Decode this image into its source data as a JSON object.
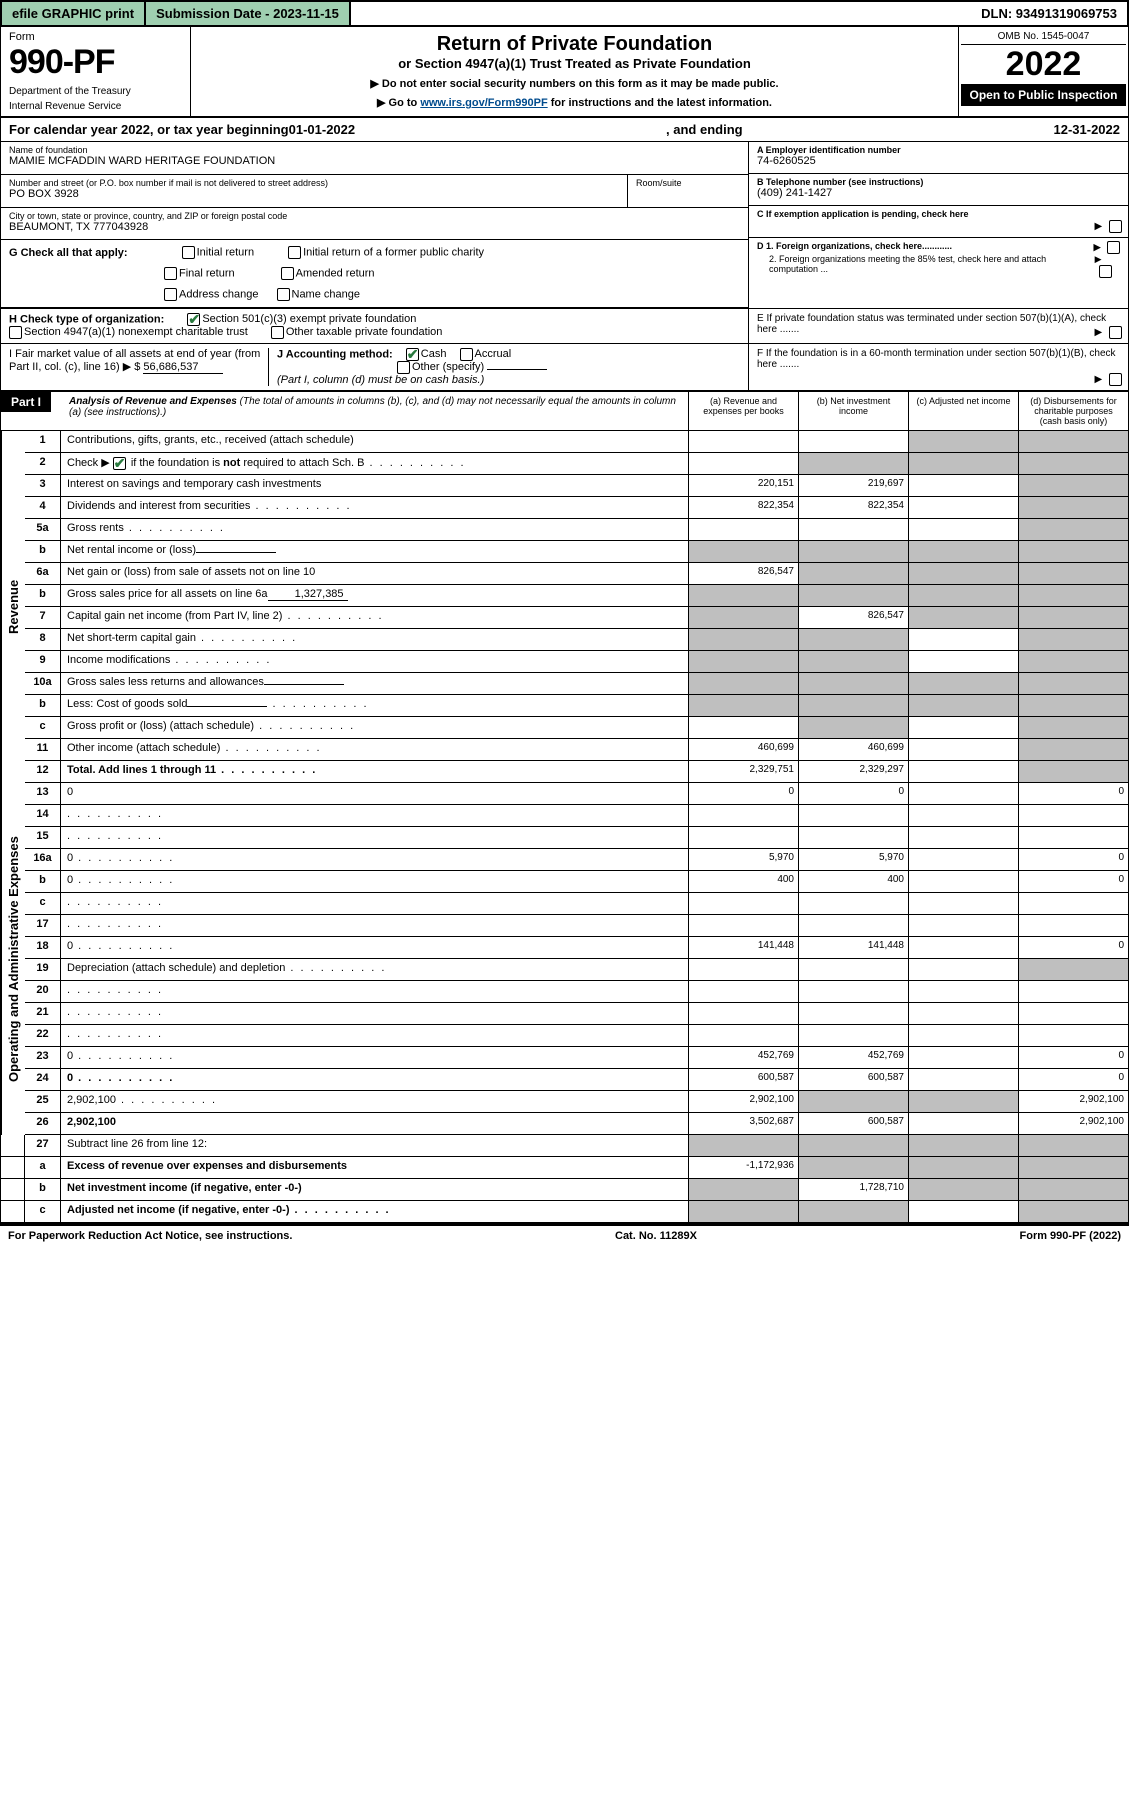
{
  "topbar": {
    "efile": "efile GRAPHIC print",
    "submission": "Submission Date - 2023-11-15",
    "dln": "DLN: 93491319069753"
  },
  "header": {
    "form_word": "Form",
    "form_num": "990-PF",
    "dept": "Department of the Treasury",
    "irs": "Internal Revenue Service",
    "title": "Return of Private Foundation",
    "subtitle": "or Section 4947(a)(1) Trust Treated as Private Foundation",
    "instr1": "▶ Do not enter social security numbers on this form as it may be made public.",
    "instr2_pre": "▶ Go to ",
    "instr2_link": "www.irs.gov/Form990PF",
    "instr2_post": " for instructions and the latest information.",
    "omb": "OMB No. 1545-0047",
    "year": "2022",
    "open": "Open to Public Inspection"
  },
  "calyear": {
    "pre": "For calendar year 2022, or tax year beginning ",
    "begin": "01-01-2022",
    "mid": ", and ending ",
    "end": "12-31-2022"
  },
  "info": {
    "name_label": "Name of foundation",
    "name": "MAMIE MCFADDIN WARD HERITAGE FOUNDATION",
    "addr_label": "Number and street (or P.O. box number if mail is not delivered to street address)",
    "addr": "PO BOX 3928",
    "room_label": "Room/suite",
    "city_label": "City or town, state or province, country, and ZIP or foreign postal code",
    "city": "BEAUMONT, TX  777043928",
    "a_label": "A Employer identification number",
    "a_val": "74-6260525",
    "b_label": "B Telephone number (see instructions)",
    "b_val": "(409) 241-1427",
    "c_label": "C If exemption application is pending, check here",
    "d1": "D 1. Foreign organizations, check here............",
    "d2": "2. Foreign organizations meeting the 85% test, check here and attach computation ...",
    "e_label": "E  If private foundation status was terminated under section 507(b)(1)(A), check here .......",
    "f_label": "F  If the foundation is in a 60-month termination under section 507(b)(1)(B), check here .......",
    "g_label": "G Check all that apply:",
    "g_opts": [
      "Initial return",
      "Initial return of a former public charity",
      "Final return",
      "Amended return",
      "Address change",
      "Name change"
    ],
    "h_label": "H Check type of organization:",
    "h_opts": [
      "Section 501(c)(3) exempt private foundation",
      "Section 4947(a)(1) nonexempt charitable trust",
      "Other taxable private foundation"
    ],
    "i_label": "I Fair market value of all assets at end of year (from Part II, col. (c), line 16) ▶ $",
    "i_val": "56,686,537",
    "j_label": "J Accounting method:",
    "j_opts": [
      "Cash",
      "Accrual",
      "Other (specify)"
    ],
    "j_note": "(Part I, column (d) must be on cash basis.)"
  },
  "part1": {
    "label": "Part I",
    "title": "Analysis of Revenue and Expenses",
    "note": "(The total of amounts in columns (b), (c), and (d) may not necessarily equal the amounts in column (a) (see instructions).)",
    "cols": {
      "a": "(a) Revenue and expenses per books",
      "b": "(b) Net investment income",
      "c": "(c) Adjusted net income",
      "d": "(d) Disbursements for charitable purposes (cash basis only)"
    }
  },
  "sections": {
    "revenue": "Revenue",
    "expenses": "Operating and Administrative Expenses"
  },
  "rows": [
    {
      "n": "1",
      "d": "Contributions, gifts, grants, etc., received (attach schedule)",
      "a": "",
      "b": "",
      "c_grey": true,
      "d_grey": true
    },
    {
      "n": "2",
      "d": "Check ▶ ☑ if the foundation is not required to attach Sch. B",
      "dots": true,
      "a": "",
      "b_grey": true,
      "c_grey": true,
      "d_grey": true,
      "bold_not": true
    },
    {
      "n": "3",
      "d": "Interest on savings and temporary cash investments",
      "a": "220,151",
      "b": "219,697",
      "c": "",
      "d_grey": true
    },
    {
      "n": "4",
      "d": "Dividends and interest from securities",
      "dots": true,
      "a": "822,354",
      "b": "822,354",
      "c": "",
      "d_grey": true
    },
    {
      "n": "5a",
      "d": "Gross rents",
      "dots": true,
      "a": "",
      "b": "",
      "c": "",
      "d_grey": true
    },
    {
      "n": "b",
      "d": "Net rental income or (loss)",
      "inline": "",
      "a_grey": true,
      "b_grey": true,
      "c_grey": true,
      "d_grey": true
    },
    {
      "n": "6a",
      "d": "Net gain or (loss) from sale of assets not on line 10",
      "a": "826,547",
      "b_grey": true,
      "c_grey": true,
      "d_grey": true
    },
    {
      "n": "b",
      "d": "Gross sales price for all assets on line 6a",
      "inline": "1,327,385",
      "a_grey": true,
      "b_grey": true,
      "c_grey": true,
      "d_grey": true
    },
    {
      "n": "7",
      "d": "Capital gain net income (from Part IV, line 2)",
      "dots": true,
      "a_grey": true,
      "b": "826,547",
      "c_grey": true,
      "d_grey": true
    },
    {
      "n": "8",
      "d": "Net short-term capital gain",
      "dots": true,
      "a_grey": true,
      "b_grey": true,
      "c": "",
      "d_grey": true
    },
    {
      "n": "9",
      "d": "Income modifications",
      "dots": true,
      "a_grey": true,
      "b_grey": true,
      "c": "",
      "d_grey": true
    },
    {
      "n": "10a",
      "d": "Gross sales less returns and allowances",
      "inline": "",
      "a_grey": true,
      "b_grey": true,
      "c_grey": true,
      "d_grey": true
    },
    {
      "n": "b",
      "d": "Less: Cost of goods sold",
      "dots": true,
      "inline": "",
      "a_grey": true,
      "b_grey": true,
      "c_grey": true,
      "d_grey": true
    },
    {
      "n": "c",
      "d": "Gross profit or (loss) (attach schedule)",
      "dots": true,
      "a": "",
      "b_grey": true,
      "c": "",
      "d_grey": true
    },
    {
      "n": "11",
      "d": "Other income (attach schedule)",
      "dots": true,
      "a": "460,699",
      "b": "460,699",
      "c": "",
      "d_grey": true
    },
    {
      "n": "12",
      "d": "Total. Add lines 1 through 11",
      "dots": true,
      "bold": true,
      "a": "2,329,751",
      "b": "2,329,297",
      "c": "",
      "d_grey": true
    }
  ],
  "exp_rows": [
    {
      "n": "13",
      "d": "0",
      "a": "0",
      "b": "0",
      "c": ""
    },
    {
      "n": "14",
      "d": "",
      "dots": true,
      "a": "",
      "b": "",
      "c": ""
    },
    {
      "n": "15",
      "d": "",
      "dots": true,
      "a": "",
      "b": "",
      "c": ""
    },
    {
      "n": "16a",
      "d": "0",
      "dots": true,
      "a": "5,970",
      "b": "5,970",
      "c": ""
    },
    {
      "n": "b",
      "d": "0",
      "dots": true,
      "a": "400",
      "b": "400",
      "c": ""
    },
    {
      "n": "c",
      "d": "",
      "dots": true,
      "a": "",
      "b": "",
      "c": ""
    },
    {
      "n": "17",
      "d": "",
      "dots": true,
      "a": "",
      "b": "",
      "c": ""
    },
    {
      "n": "18",
      "d": "0",
      "dots": true,
      "a": "141,448",
      "b": "141,448",
      "c": ""
    },
    {
      "n": "19",
      "d": "Depreciation (attach schedule) and depletion",
      "dots": true,
      "a": "",
      "b": "",
      "c": "",
      "d_grey": true
    },
    {
      "n": "20",
      "d": "",
      "dots": true,
      "a": "",
      "b": "",
      "c": ""
    },
    {
      "n": "21",
      "d": "",
      "dots": true,
      "a": "",
      "b": "",
      "c": ""
    },
    {
      "n": "22",
      "d": "",
      "dots": true,
      "a": "",
      "b": "",
      "c": ""
    },
    {
      "n": "23",
      "d": "0",
      "dots": true,
      "a": "452,769",
      "b": "452,769",
      "c": ""
    },
    {
      "n": "24",
      "d": "0",
      "dots": true,
      "bold": true,
      "a": "600,587",
      "b": "600,587",
      "c": ""
    },
    {
      "n": "25",
      "d": "2,902,100",
      "dots": true,
      "a": "2,902,100",
      "b_grey": true,
      "c_grey": true
    },
    {
      "n": "26",
      "d": "2,902,100",
      "bold": true,
      "a": "3,502,687",
      "b": "600,587",
      "c": ""
    }
  ],
  "bottom_rows": [
    {
      "n": "27",
      "d": "Subtract line 26 from line 12:",
      "a_grey": true,
      "b_grey": true,
      "c_grey": true,
      "d_grey": true
    },
    {
      "n": "a",
      "d": "Excess of revenue over expenses and disbursements",
      "bold": true,
      "a": "-1,172,936",
      "b_grey": true,
      "c_grey": true,
      "d_grey": true
    },
    {
      "n": "b",
      "d": "Net investment income (if negative, enter -0-)",
      "bold": true,
      "a_grey": true,
      "b": "1,728,710",
      "c_grey": true,
      "d_grey": true
    },
    {
      "n": "c",
      "d": "Adjusted net income (if negative, enter -0-)",
      "bold": true,
      "dots": true,
      "a_grey": true,
      "b_grey": true,
      "c": "",
      "d_grey": true
    }
  ],
  "footer": {
    "left": "For Paperwork Reduction Act Notice, see instructions.",
    "mid": "Cat. No. 11289X",
    "right": "Form 990-PF (2022)"
  },
  "colors": {
    "green_bg": "#9fcfb0",
    "grey_cell": "#bfbfbf",
    "link": "#004b8d",
    "check_green": "#2a7a3f"
  }
}
